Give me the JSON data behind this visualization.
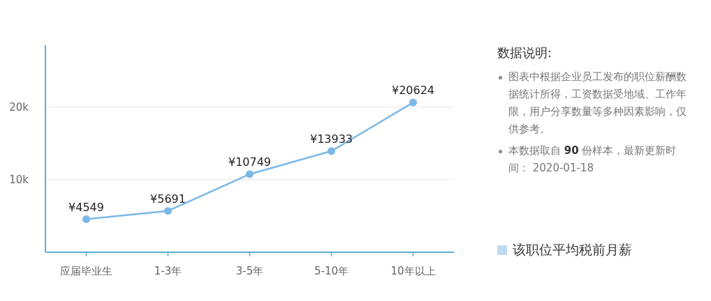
{
  "chart_data": {
    "type": "line",
    "title": "数据说明:",
    "annotations": [
      "图表中根据企业员工发布的职位薪酬数据统计所得，工资数据受地域、工作年限，用户分享数量等多种因素影响，仅供参考。",
      "本数据取自 **90** 份样本，最新更新时间： 2020-01-18"
    ],
    "categories": [
      "应届毕业生",
      "1-3年",
      "3-5年",
      "5-10年",
      "10年以上"
    ],
    "series": [
      {
        "name": "该职位平均税前月薪",
        "color": "#7ab8e8",
        "values": [
          4549,
          5691,
          10749,
          13933,
          20624
        ],
        "value_labels": [
          "¥4549",
          "¥5691",
          "¥10749",
          "¥13933",
          "¥20624"
        ]
      }
    ],
    "ylim": [
      0,
      28500
    ],
    "yticks": [
      {
        "value": 10000,
        "label": "10k"
      },
      {
        "value": 20000,
        "label": "20k"
      }
    ],
    "grid": "y",
    "legend": "right",
    "marker": "circle",
    "line_style": "solid"
  }
}
